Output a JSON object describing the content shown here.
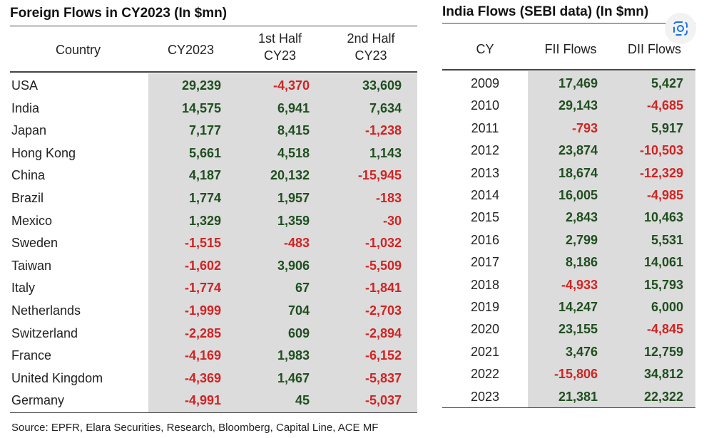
{
  "left": {
    "title": "Foreign Flows in CY2023 (In $mn)",
    "headers": [
      "Country",
      "CY2023",
      "1st Half\nCY23",
      "2nd Half\nCY23"
    ],
    "rows": [
      [
        "USA",
        "29,239",
        "-4,370",
        "33,609"
      ],
      [
        "India",
        "14,575",
        "6,941",
        "7,634"
      ],
      [
        "Japan",
        "7,177",
        "8,415",
        "-1,238"
      ],
      [
        "Hong Kong",
        "5,661",
        "4,518",
        "1,143"
      ],
      [
        "China",
        "4,187",
        "20,132",
        "-15,945"
      ],
      [
        "Brazil",
        "1,774",
        "1,957",
        "-183"
      ],
      [
        "Mexico",
        "1,329",
        "1,359",
        "-30"
      ],
      [
        "Sweden",
        "-1,515",
        "-483",
        "-1,032"
      ],
      [
        "Taiwan",
        "-1,602",
        "3,906",
        "-5,509"
      ],
      [
        "Italy",
        "-1,774",
        "67",
        "-1,841"
      ],
      [
        "Netherlands",
        "-1,999",
        "704",
        "-2,703"
      ],
      [
        "Switzerland",
        "-2,285",
        "609",
        "-2,894"
      ],
      [
        "France",
        "-4,169",
        "1,983",
        "-6,152"
      ],
      [
        "United Kingdom",
        "-4,369",
        "1,467",
        "-5,837"
      ],
      [
        "Germany",
        "-4,991",
        "45",
        "-5,037"
      ]
    ]
  },
  "right": {
    "title": "India Flows (SEBI data) (In $mn)",
    "headers": [
      "CY",
      "FII Flows",
      "DII Flows"
    ],
    "rows": [
      [
        "2009",
        "17,469",
        "5,427"
      ],
      [
        "2010",
        "29,143",
        "-4,685"
      ],
      [
        "2011",
        "-793",
        "5,917"
      ],
      [
        "2012",
        "23,874",
        "-10,503"
      ],
      [
        "2013",
        "18,674",
        "-12,329"
      ],
      [
        "2014",
        "16,005",
        "-4,985"
      ],
      [
        "2015",
        "2,843",
        "10,463"
      ],
      [
        "2016",
        "2,799",
        "5,531"
      ],
      [
        "2017",
        "8,186",
        "14,061"
      ],
      [
        "2018",
        "-4,933",
        "15,793"
      ],
      [
        "2019",
        "14,247",
        "6,000"
      ],
      [
        "2020",
        "23,155",
        "-4,845"
      ],
      [
        "2021",
        "3,476",
        "12,759"
      ],
      [
        "2022",
        "-15,806",
        "34,812"
      ],
      [
        "2023",
        "21,381",
        "22,322"
      ]
    ]
  },
  "source": "Source: EPFR, Elara Securities, Research, Bloomberg, Capital Line, ACE MF"
}
